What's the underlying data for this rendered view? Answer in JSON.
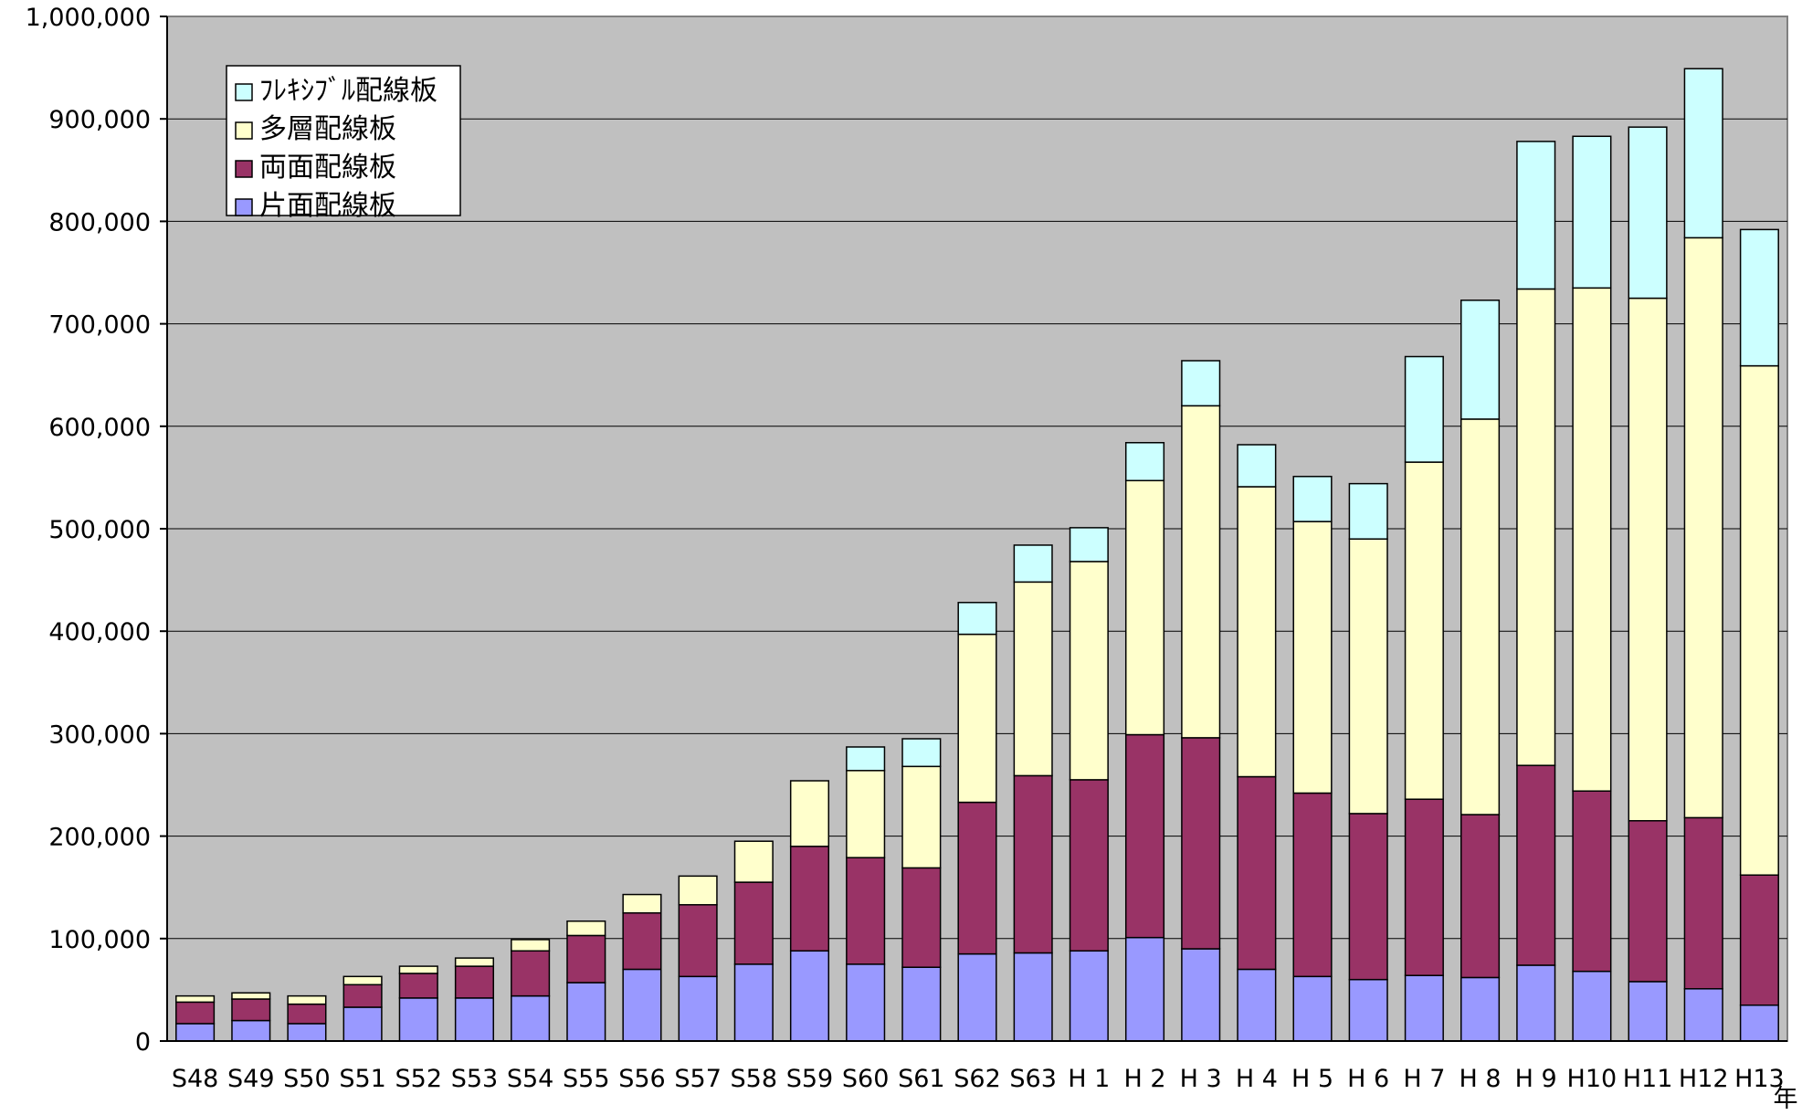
{
  "chart_data": {
    "type": "bar",
    "stacked": true,
    "categories": [
      "S48",
      "S49",
      "S50",
      "S51",
      "S52",
      "S53",
      "S54",
      "S55",
      "S56",
      "S57",
      "S58",
      "S59",
      "S60",
      "S61",
      "S62",
      "S63",
      "H 1",
      "H 2",
      "H 3",
      "H 4",
      "H 5",
      "H 6",
      "H 7",
      "H 8",
      "H 9",
      "H10",
      "H11",
      "H12",
      "H13"
    ],
    "series": [
      {
        "name": "片面配線板",
        "color": "#9999ff",
        "values": [
          17000,
          20000,
          17000,
          33000,
          42000,
          42000,
          44000,
          57000,
          70000,
          63000,
          75000,
          88000,
          75000,
          72000,
          85000,
          86000,
          88000,
          101000,
          90000,
          70000,
          63000,
          60000,
          64000,
          62000,
          74000,
          68000,
          58000,
          51000,
          35000
        ]
      },
      {
        "name": "両面配線板",
        "color": "#993366",
        "values": [
          21000,
          21000,
          19000,
          22000,
          24000,
          31000,
          44000,
          46000,
          55000,
          70000,
          80000,
          102000,
          104000,
          97000,
          148000,
          173000,
          167000,
          198000,
          206000,
          188000,
          179000,
          162000,
          172000,
          159000,
          195000,
          176000,
          157000,
          167000,
          127000
        ]
      },
      {
        "name": "多層配線板",
        "color": "#ffffcc",
        "values": [
          6000,
          6000,
          8000,
          8000,
          7000,
          8000,
          11000,
          14000,
          18000,
          28000,
          40000,
          64000,
          85000,
          99000,
          164000,
          189000,
          213000,
          248000,
          324000,
          283000,
          265000,
          268000,
          329000,
          386000,
          465000,
          491000,
          510000,
          566000,
          497000
        ]
      },
      {
        "name": "フレキシブル配線板",
        "color": "#ccffff",
        "values": [
          0,
          0,
          0,
          0,
          0,
          0,
          0,
          0,
          0,
          0,
          0,
          0,
          23000,
          27000,
          31000,
          36000,
          33000,
          37000,
          44000,
          41000,
          44000,
          54000,
          103000,
          116000,
          144000,
          148000,
          167000,
          165000,
          133000
        ]
      }
    ],
    "yaxis": {
      "min": 0,
      "max": 1000000,
      "step": 100000,
      "tick_labels": [
        "0",
        "100,000",
        "200,000",
        "300,000",
        "400,000",
        "500,000",
        "600,000",
        "700,000",
        "800,000",
        "900,000",
        "1,000,000"
      ]
    },
    "xlabel": "年",
    "ylabel": "",
    "title": "",
    "grid": true,
    "plot_background": "#c0c0c0",
    "legend": {
      "placement": "top-left",
      "entries": [
        "フレキシブル配線板",
        "多層配線板",
        "両面配線板",
        "片面配線板"
      ],
      "labels": [
        "ﾌﾚｷｼﾌﾞﾙ配線板",
        "多層配線板",
        "両面配線板",
        "片面配線板"
      ]
    }
  }
}
